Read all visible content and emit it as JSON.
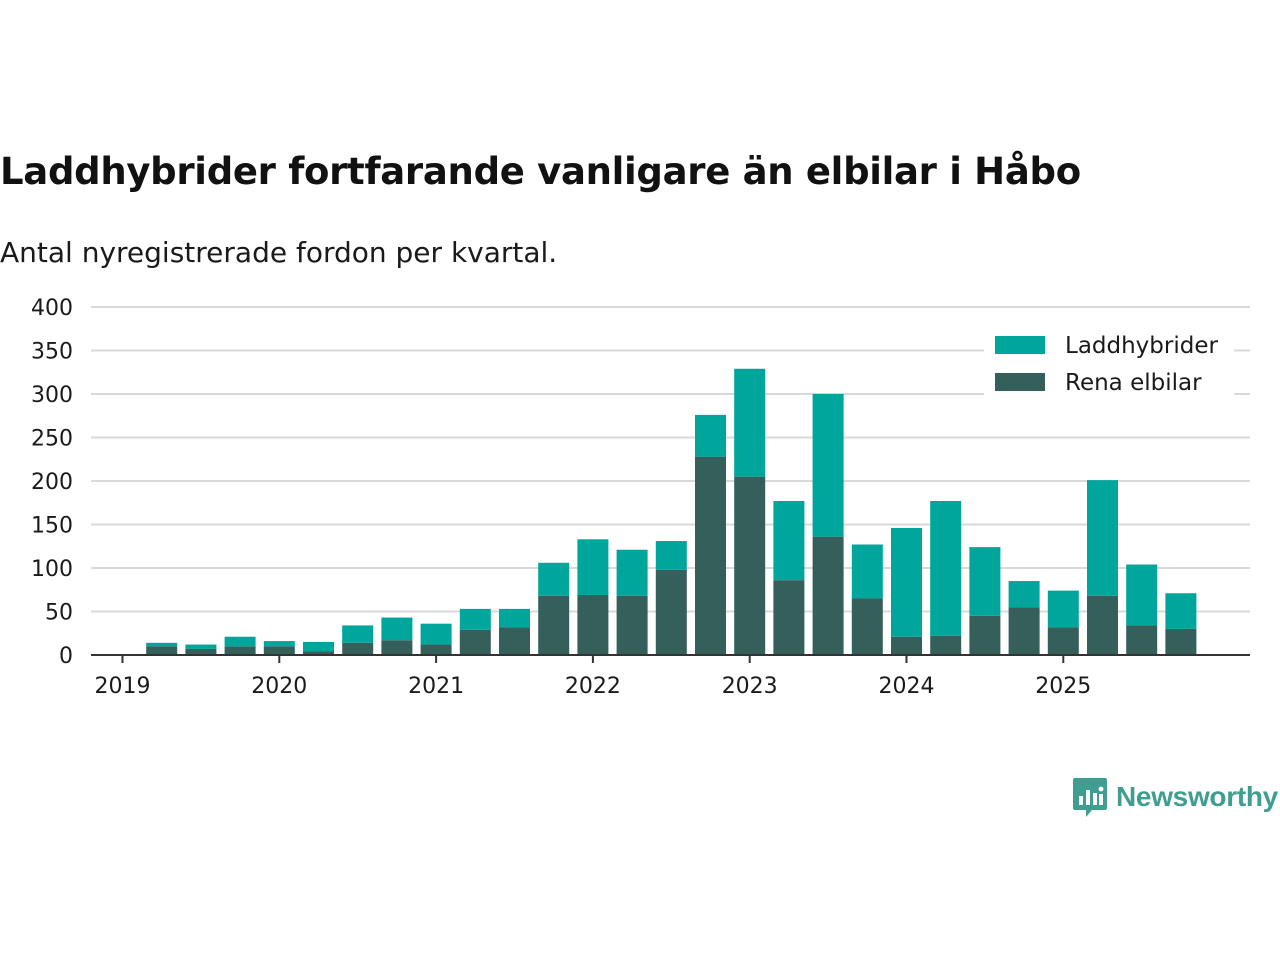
{
  "chart_data": {
    "type": "bar",
    "stacked": true,
    "title": "Laddhybrider fortfarande vanligare än elbilar i Håbo",
    "subtitle": "Antal nyregistrerade fordon per kvartal.",
    "xlabel": "",
    "ylabel": "",
    "ylim": [
      0,
      400
    ],
    "yticks": [
      "0",
      "50",
      "100",
      "150",
      "200",
      "250",
      "300",
      "350",
      "400"
    ],
    "xticks": [
      "2019",
      "2020",
      "2021",
      "2022",
      "2023",
      "2024",
      "2025"
    ],
    "categories": [
      "2019 Q1",
      "2019 Q2",
      "2019 Q3",
      "2019 Q4",
      "2020 Q1",
      "2020 Q2",
      "2020 Q3",
      "2020 Q4",
      "2021 Q1",
      "2021 Q2",
      "2021 Q3",
      "2021 Q4",
      "2022 Q1",
      "2022 Q2",
      "2022 Q3",
      "2022 Q4",
      "2023 Q1",
      "2023 Q2",
      "2023 Q3",
      "2023 Q4",
      "2024 Q1",
      "2024 Q2",
      "2024 Q3",
      "2024 Q4",
      "2025 Q1",
      "2025 Q2",
      "2025 Q3",
      "2025 Q4"
    ],
    "series": [
      {
        "name": "Rena elbilar",
        "color": "#355f5b",
        "values": [
          0,
          10,
          7,
          10,
          10,
          4,
          14,
          17,
          12,
          29,
          32,
          68,
          69,
          68,
          98,
          228,
          205,
          86,
          136,
          65,
          21,
          22,
          45,
          55,
          32,
          68,
          34,
          30
        ]
      },
      {
        "name": "Laddhybrider",
        "color": "#00a59b",
        "values": [
          0,
          4,
          5,
          11,
          6,
          11,
          20,
          26,
          24,
          24,
          21,
          38,
          64,
          53,
          33,
          48,
          124,
          91,
          164,
          62,
          125,
          155,
          79,
          30,
          42,
          133,
          70,
          41
        ]
      }
    ],
    "legend": {
      "position": "top-right",
      "entries": [
        "Laddhybrider",
        "Rena elbilar"
      ]
    },
    "grid": true
  },
  "brand": {
    "name": "Newsworthy",
    "color": "#3f9e8f"
  },
  "colors": {
    "grid": "#d9d9d9",
    "axis": "#333333",
    "text": "#1a1a1a"
  }
}
